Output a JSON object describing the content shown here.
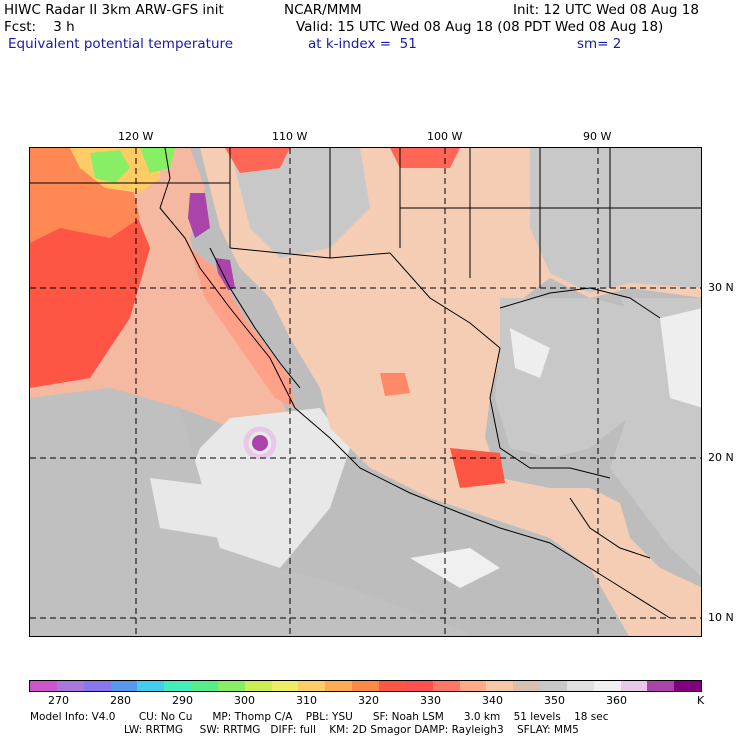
{
  "header": {
    "line1_left": "HIWC Radar II 3km ARW-GFS init",
    "line1_center": "NCAR/MMM",
    "line1_right": "Init: 12 UTC Wed 08 Aug 18",
    "line2_left": "Fcst:    3 h",
    "line2_right": "Valid: 15 UTC Wed 08 Aug 18 (08 PDT Wed 08 Aug 18)",
    "line3_left": "Equivalent potential temperature",
    "line3_center": "at k-index =  51",
    "line3_right": "sm= 2"
  },
  "map": {
    "lon_labels": [
      "120 W",
      "110 W",
      "100 W",
      "90 W"
    ],
    "lat_labels": [
      "30 N",
      "20 N",
      "10 N"
    ]
  },
  "colorbar": {
    "colors": [
      "#cc55cc",
      "#aa77dd",
      "#8877ee",
      "#5599ee",
      "#44ccee",
      "#44eebb",
      "#55ee88",
      "#88ee66",
      "#ccee55",
      "#eeee66",
      "#ffcc66",
      "#ffaa55",
      "#ff8844",
      "#ff5544",
      "#ff5050",
      "#ff7766",
      "#ffaa88",
      "#f5c8a8",
      "#d8c0b0",
      "#c8c8c8",
      "#e0e0e0",
      "#f0f0f0",
      "#e8c8e8",
      "#aa44aa",
      "#800080"
    ],
    "tick_labels": [
      "270",
      "280",
      "290",
      "300",
      "310",
      "320",
      "330",
      "340",
      "350",
      "360"
    ],
    "unit": "K"
  },
  "footer": {
    "line1": "Model Info: V4.0       CU: No Cu      MP: Thomp C/A    PBL: YSU      SF: Noah LSM      3.0 km    51 levels    18 sec",
    "line2": "LW: RRTMG     SW: RRTMG   DIFF: full    KM: 2D Smagor DAMP: Rayleigh3    SFLAY: MM5"
  }
}
